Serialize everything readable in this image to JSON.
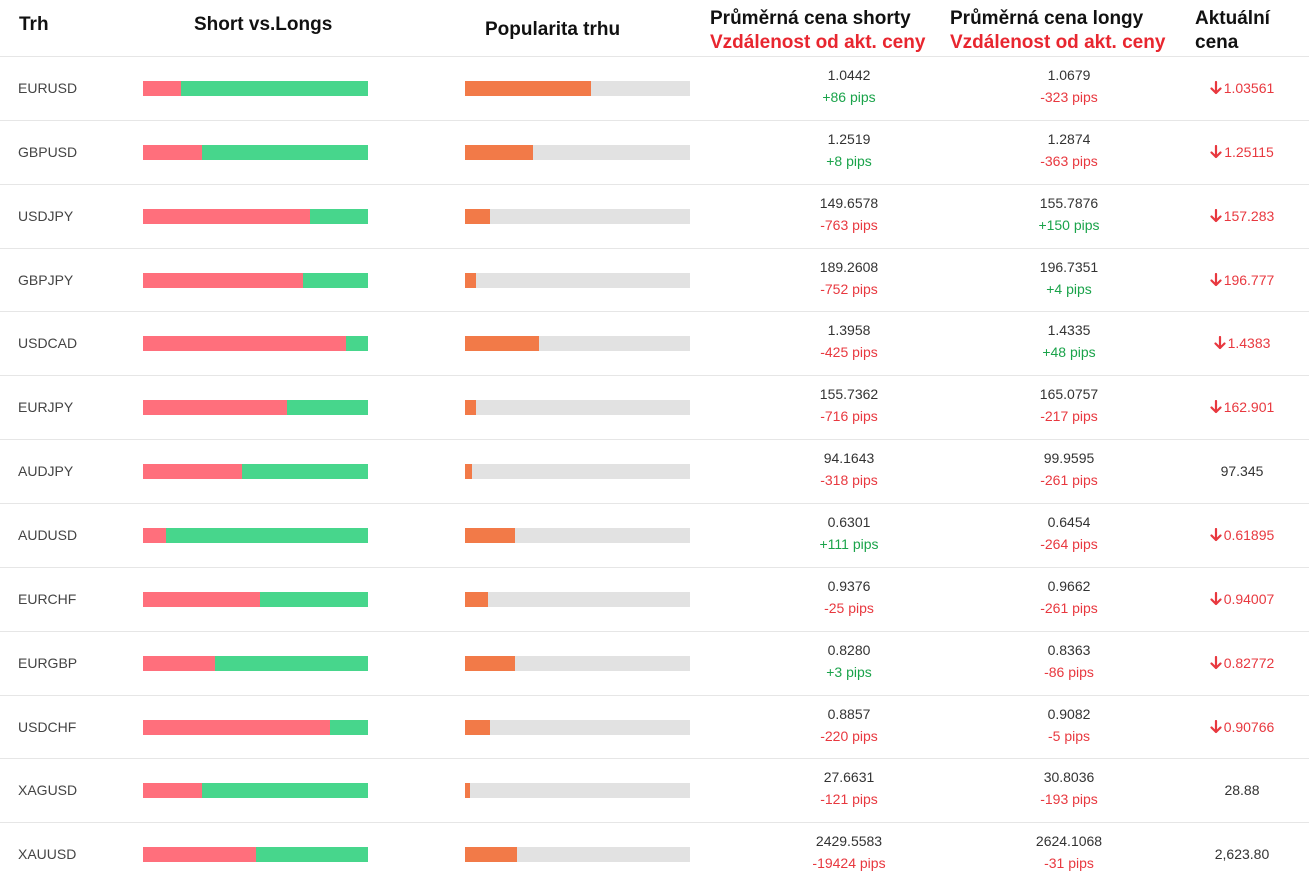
{
  "header": {
    "market": "Trh",
    "short_vs_long": "Short vs.Longs",
    "popularity": "Popularita trhu",
    "avg_short_title": "Průměrná cena shorty",
    "avg_short_sub": "Vzdálenost od akt. ceny",
    "avg_long_title": "Průměrná cena longy",
    "avg_long_sub": "Vzdálenost od akt. ceny",
    "current_l1": "Aktuální",
    "current_l2": "cena"
  },
  "colors": {
    "short": "#ff6f7c",
    "long": "#47d68c",
    "popularity": "#f27a48",
    "positive": "#1aa34a",
    "negative": "#e8383f"
  },
  "rows": [
    {
      "pair": "EURUSD",
      "short_ratio": 0.17,
      "popularity": 0.56,
      "avg_short": "1.0442",
      "short_pips": "+86 pips",
      "short_pos": true,
      "avg_long": "1.0679",
      "long_pips": "-323 pips",
      "long_pos": false,
      "current": "1.03561",
      "down": true
    },
    {
      "pair": "GBPUSD",
      "short_ratio": 0.26,
      "popularity": 0.3,
      "avg_short": "1.2519",
      "short_pips": "+8 pips",
      "short_pos": true,
      "avg_long": "1.2874",
      "long_pips": "-363 pips",
      "long_pos": false,
      "current": "1.25115",
      "down": true
    },
    {
      "pair": "USDJPY",
      "short_ratio": 0.74,
      "popularity": 0.11,
      "avg_short": "149.6578",
      "short_pips": "-763 pips",
      "short_pos": false,
      "avg_long": "155.7876",
      "long_pips": "+150 pips",
      "long_pos": true,
      "current": "157.283",
      "down": true
    },
    {
      "pair": "GBPJPY",
      "short_ratio": 0.71,
      "popularity": 0.05,
      "avg_short": "189.2608",
      "short_pips": "-752 pips",
      "short_pos": false,
      "avg_long": "196.7351",
      "long_pips": "+4 pips",
      "long_pos": true,
      "current": "196.777",
      "down": true
    },
    {
      "pair": "USDCAD",
      "short_ratio": 0.9,
      "popularity": 0.33,
      "avg_short": "1.3958",
      "short_pips": "-425 pips",
      "short_pos": false,
      "avg_long": "1.4335",
      "long_pips": "+48 pips",
      "long_pos": true,
      "current": "1.4383",
      "down": true
    },
    {
      "pair": "EURJPY",
      "short_ratio": 0.64,
      "popularity": 0.05,
      "avg_short": "155.7362",
      "short_pips": "-716 pips",
      "short_pos": false,
      "avg_long": "165.0757",
      "long_pips": "-217 pips",
      "long_pos": false,
      "current": "162.901",
      "down": true
    },
    {
      "pair": "AUDJPY",
      "short_ratio": 0.44,
      "popularity": 0.03,
      "avg_short": "94.1643",
      "short_pips": "-318 pips",
      "short_pos": false,
      "avg_long": "99.9595",
      "long_pips": "-261 pips",
      "long_pos": false,
      "current": "97.345",
      "down": false
    },
    {
      "pair": "AUDUSD",
      "short_ratio": 0.1,
      "popularity": 0.22,
      "avg_short": "0.6301",
      "short_pips": "+111 pips",
      "short_pos": true,
      "avg_long": "0.6454",
      "long_pips": "-264 pips",
      "long_pos": false,
      "current": "0.61895",
      "down": true
    },
    {
      "pair": "EURCHF",
      "short_ratio": 0.52,
      "popularity": 0.1,
      "avg_short": "0.9376",
      "short_pips": "-25 pips",
      "short_pos": false,
      "avg_long": "0.9662",
      "long_pips": "-261 pips",
      "long_pos": false,
      "current": "0.94007",
      "down": true
    },
    {
      "pair": "EURGBP",
      "short_ratio": 0.32,
      "popularity": 0.22,
      "avg_short": "0.8280",
      "short_pips": "+3 pips",
      "short_pos": true,
      "avg_long": "0.8363",
      "long_pips": "-86 pips",
      "long_pos": false,
      "current": "0.82772",
      "down": true
    },
    {
      "pair": "USDCHF",
      "short_ratio": 0.83,
      "popularity": 0.11,
      "avg_short": "0.8857",
      "short_pips": "-220 pips",
      "short_pos": false,
      "avg_long": "0.9082",
      "long_pips": "-5 pips",
      "long_pos": false,
      "current": "0.90766",
      "down": true
    },
    {
      "pair": "XAGUSD",
      "short_ratio": 0.26,
      "popularity": 0.02,
      "avg_short": "27.6631",
      "short_pips": "-121 pips",
      "short_pos": false,
      "avg_long": "30.8036",
      "long_pips": "-193 pips",
      "long_pos": false,
      "current": "28.88",
      "down": false
    },
    {
      "pair": "XAUUSD",
      "short_ratio": 0.5,
      "popularity": 0.23,
      "avg_short": "2429.5583",
      "short_pips": "-19424 pips",
      "short_pos": false,
      "avg_long": "2624.1068",
      "long_pips": "-31 pips",
      "long_pos": false,
      "current": "2,623.80",
      "down": false
    }
  ]
}
